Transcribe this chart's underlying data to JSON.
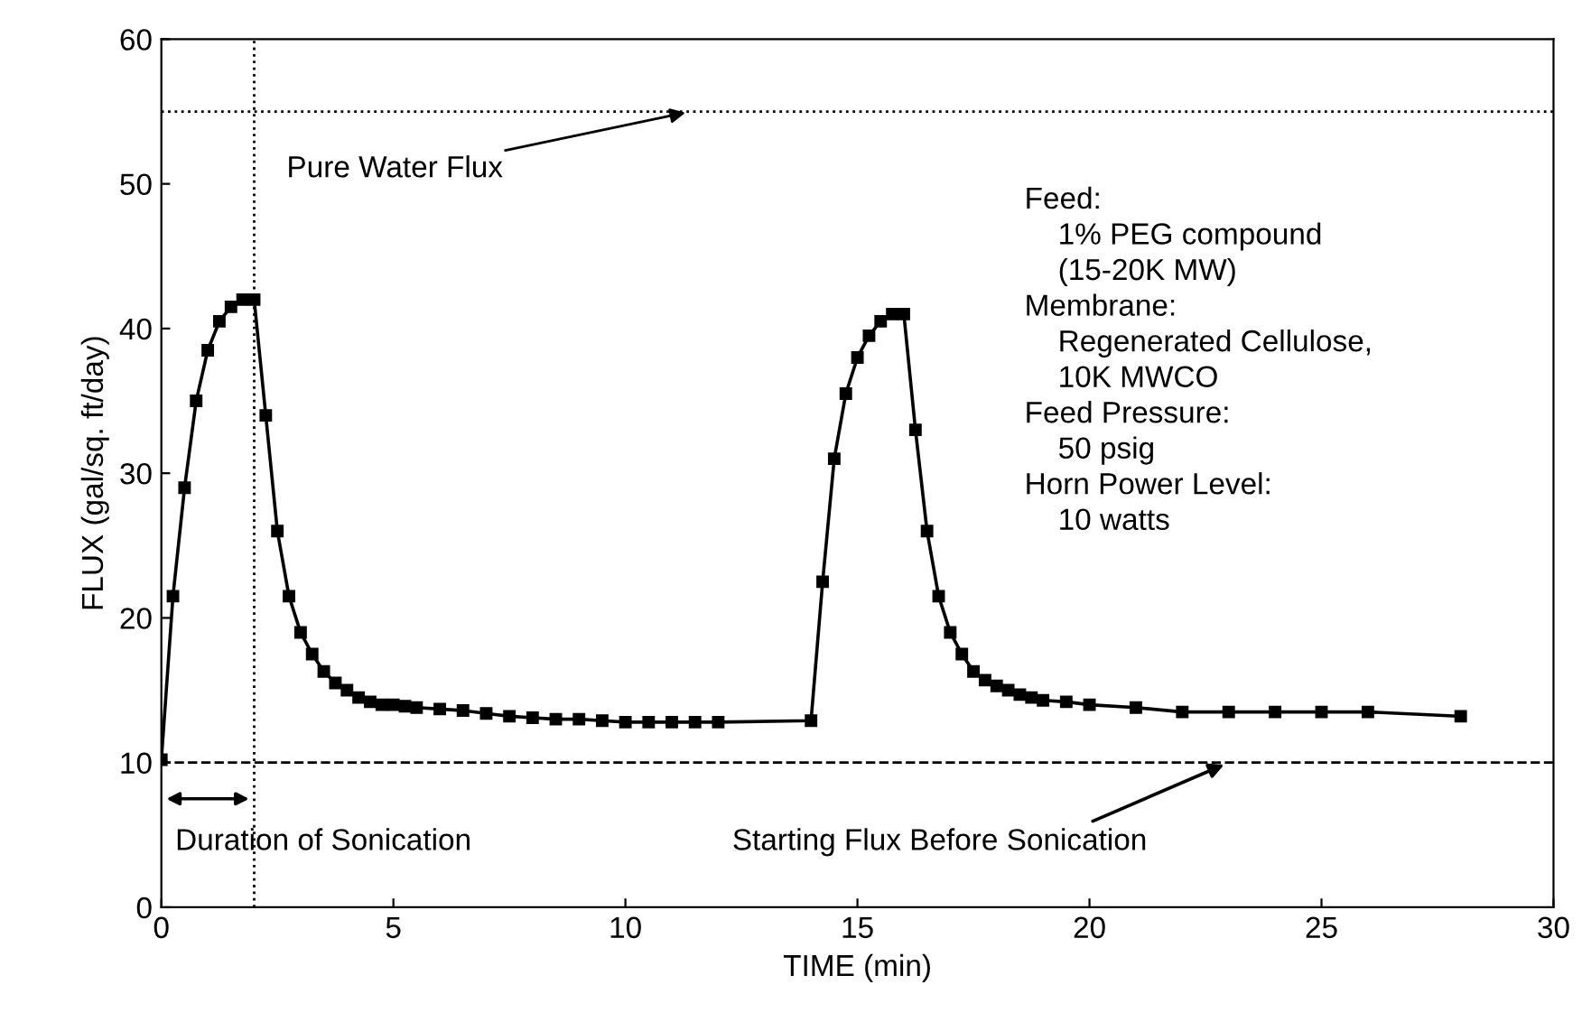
{
  "chart_data": {
    "type": "line",
    "xlabel": "TIME (min)",
    "ylabel": "FLUX (gal/sq. ft/day)",
    "xlim": [
      0,
      30
    ],
    "xticks": [
      0,
      5,
      10,
      15,
      20,
      25,
      30
    ],
    "ylim": [
      0,
      60
    ],
    "yticks": [
      0,
      10,
      20,
      30,
      40,
      50,
      60
    ],
    "grid": false,
    "legend": false,
    "marker": "square",
    "line_style": "solid",
    "series": [
      {
        "color": "#000000",
        "x": [
          0,
          0.25,
          0.5,
          0.75,
          1.0,
          1.25,
          1.5,
          1.75,
          2.0,
          2.25,
          2.5,
          2.75,
          3.0,
          3.25,
          3.5,
          3.75,
          4.0,
          4.25,
          4.5,
          4.75,
          5.0,
          5.25,
          5.5,
          6.0,
          6.5,
          7.0,
          7.5,
          8.0,
          8.5,
          9.0,
          9.5,
          10.0,
          10.5,
          11.0,
          11.5,
          12.0,
          14.0,
          14.25,
          14.5,
          14.75,
          15.0,
          15.25,
          15.5,
          15.75,
          16.0,
          16.25,
          16.5,
          16.75,
          17.0,
          17.25,
          17.5,
          17.75,
          18.0,
          18.25,
          18.5,
          18.75,
          19.0,
          19.5,
          20.0,
          21.0,
          22.0,
          23.0,
          24.0,
          25.0,
          26.0,
          28.0
        ],
        "values": [
          10.2,
          21.5,
          29,
          35,
          38.5,
          40.5,
          41.5,
          42,
          42,
          34,
          26,
          21.5,
          19,
          17.5,
          16.3,
          15.5,
          15,
          14.5,
          14.2,
          14,
          14,
          13.9,
          13.8,
          13.7,
          13.6,
          13.4,
          13.2,
          13.1,
          13,
          13,
          12.9,
          12.8,
          12.8,
          12.8,
          12.8,
          12.8,
          12.9,
          22.5,
          31,
          35.5,
          38,
          39.5,
          40.5,
          41,
          41,
          33,
          26,
          21.5,
          19,
          17.5,
          16.3,
          15.7,
          15.3,
          15,
          14.7,
          14.5,
          14.3,
          14.2,
          14,
          13.8,
          13.5,
          13.5,
          13.5,
          13.5,
          13.5,
          13.2
        ]
      }
    ],
    "ref_lines": [
      {
        "axis": "y",
        "value": 55,
        "label": null,
        "line_style": "dotted",
        "color": "#000000"
      },
      {
        "axis": "y",
        "value": 10,
        "label": null,
        "line_style": "dashed",
        "color": "#000000"
      },
      {
        "axis": "x",
        "value": 2,
        "label": null,
        "line_style": "dotted",
        "color": "#000000"
      }
    ],
    "annotations": [
      {
        "text": "Pure Water Flux",
        "x": 11.4,
        "y": 55
      },
      {
        "text": "Duration of Sonication",
        "x": 2,
        "y": 7.5
      },
      {
        "text": "Starting Flux Before Sonication",
        "x": 23,
        "y": 10
      },
      "Feed:\n    1% PEG compound\n    (15-20K MW)\nMembrane:\n    Regenerated Cellulose,\n    10K MWCO\nFeed Pressure:\n    50 psig\nHorn Power Level:\n    10 watts"
    ]
  }
}
